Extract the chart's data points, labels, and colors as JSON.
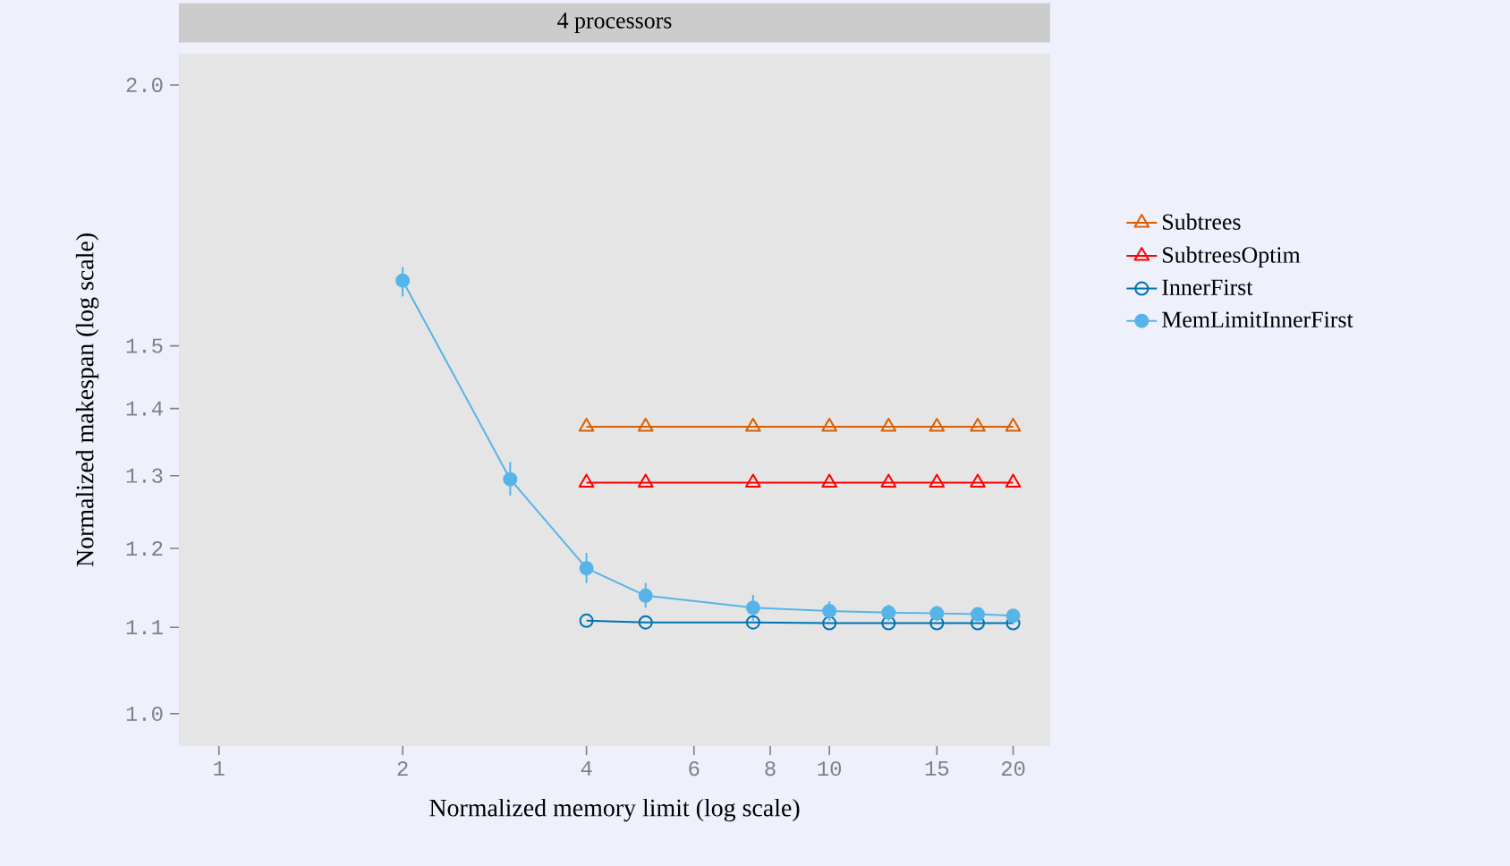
{
  "chart_data": {
    "type": "line",
    "title": "4 processors",
    "xlabel": "Normalized memory limit (log scale)",
    "ylabel": "Normalized makespan (log scale)",
    "log": "xy",
    "legend": "right",
    "grid": false,
    "x": [
      4,
      5,
      7.5,
      10,
      12.5,
      15,
      17.5,
      20
    ],
    "xlim": [
      0.86,
      23
    ],
    "ylim": [
      0.965,
      2.07
    ],
    "xticks": [
      1,
      2,
      4,
      6,
      8,
      10,
      15,
      20
    ],
    "yticks": [
      {
        "value": 1.0,
        "label": "1.0"
      },
      {
        "value": 1.1,
        "label": "1.1"
      },
      {
        "value": 1.2,
        "label": "1.2"
      },
      {
        "value": 1.3,
        "label": "1.3"
      },
      {
        "value": 1.4,
        "label": "1.4"
      },
      {
        "value": 1.5,
        "label": "1.5"
      },
      {
        "value": 2.0,
        "label": "2.0"
      }
    ],
    "series": [
      {
        "name": "Subtrees",
        "color": "#d95f02",
        "marker": "triangle",
        "values": [
          1.372,
          1.372,
          1.372,
          1.372,
          1.372,
          1.372,
          1.372,
          1.372
        ]
      },
      {
        "name": "SubtreesOptim",
        "color": "#ff0000",
        "marker": "triangle",
        "values": [
          1.29,
          1.29,
          1.29,
          1.29,
          1.29,
          1.29,
          1.29,
          1.29
        ]
      },
      {
        "name": "InnerFirst",
        "color": "#0072b2",
        "marker": "circle",
        "values": [
          1.108,
          1.106,
          1.106,
          1.105,
          1.105,
          1.105,
          1.105,
          1.105
        ]
      },
      {
        "name": "MemLimitInnerFirst",
        "color": "#56b4e9",
        "marker": "circle",
        "x": [
          2,
          3,
          4,
          5,
          7.5,
          10,
          12.5,
          15,
          17.5,
          20
        ],
        "values": [
          1.612,
          1.295,
          1.174,
          1.139,
          1.124,
          1.12,
          1.118,
          1.117,
          1.116,
          1.114
        ],
        "errors": [
          [
            1.584,
            1.636
          ],
          [
            1.272,
            1.32
          ],
          [
            1.155,
            1.194
          ],
          [
            1.124,
            1.155
          ],
          [
            1.108,
            1.14
          ],
          [
            1.108,
            1.132
          ],
          [
            1.108,
            1.128
          ],
          [
            1.108,
            1.126
          ],
          [
            1.108,
            1.124
          ],
          [
            1.106,
            1.122
          ]
        ]
      }
    ]
  }
}
